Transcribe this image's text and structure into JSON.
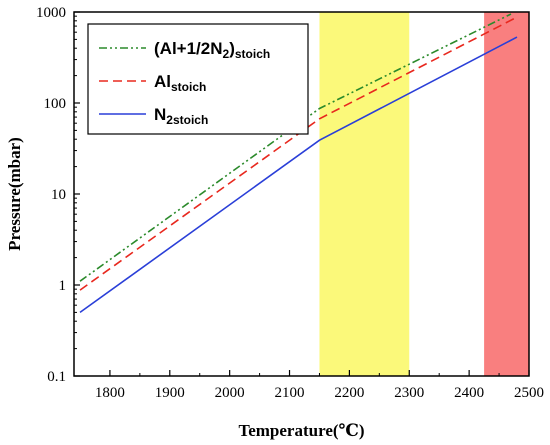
{
  "chart_data": {
    "type": "line",
    "xlabel": "Temperature(℃)",
    "ylabel": "Pressure(mbar)",
    "xlim": [
      1740,
      2500
    ],
    "ylim": [
      0.1,
      1000
    ],
    "y_scale": "log",
    "grid": false,
    "legend_position": "top-left",
    "x_ticks": [
      "1800",
      "1900",
      "2000",
      "2100",
      "2200",
      "2300",
      "2400",
      "2500"
    ],
    "y_ticks": [
      "0.1",
      "1",
      "10",
      "100",
      "1000"
    ],
    "x_tick_values": [
      1800,
      1900,
      2000,
      2100,
      2200,
      2300,
      2400,
      2500
    ],
    "y_tick_values": [
      0.1,
      1,
      10,
      100,
      1000
    ],
    "shaded_regions": [
      {
        "x": [
          2150,
          2300
        ],
        "color": "#fbf97a"
      },
      {
        "x": [
          2425,
          2500
        ],
        "color": "#f97f7f"
      }
    ],
    "series": [
      {
        "name_parts": [
          {
            "text": "(Al+1/2N",
            "sub": false
          },
          {
            "text": "2",
            "sub": true
          },
          {
            "text": ")",
            "sub": false
          },
          {
            "text": "stoich",
            "sub": true
          }
        ],
        "color": "#2b8a2b",
        "dash": "dash-dot-dot",
        "x": [
          1750,
          2150,
          2470
        ],
        "y": [
          1.1,
          87,
          950
        ]
      },
      {
        "name_parts": [
          {
            "text": "Al",
            "sub": false
          },
          {
            "text": "stoich",
            "sub": true
          }
        ],
        "color": "#e8281e",
        "dash": "dashed",
        "x": [
          1750,
          2150,
          2480
        ],
        "y": [
          0.88,
          67,
          880
        ]
      },
      {
        "name_parts": [
          {
            "text": "N",
            "sub": false
          },
          {
            "text": "2stoich",
            "sub": true
          }
        ],
        "color": "#2a3fd8",
        "dash": "solid",
        "x": [
          1750,
          2150,
          2480
        ],
        "y": [
          0.5,
          39,
          530
        ]
      }
    ]
  }
}
